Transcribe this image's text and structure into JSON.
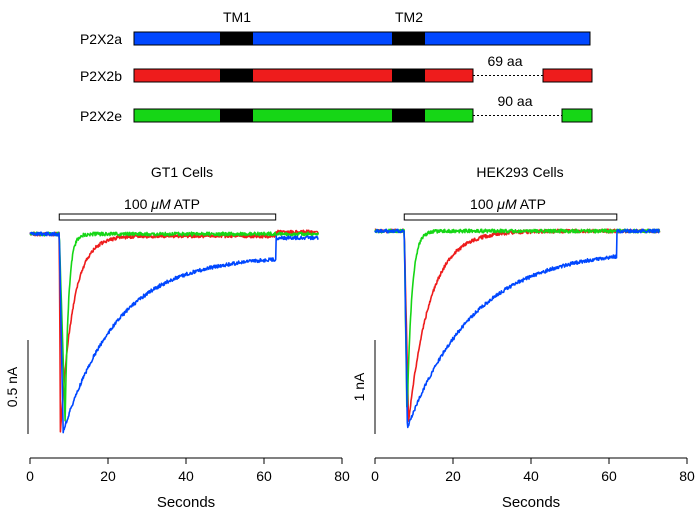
{
  "colors": {
    "p2x2a": "#0047ff",
    "p2x2b": "#ee1c1c",
    "p2x2e": "#16d616",
    "tm": "#000000",
    "axis": "#000000"
  },
  "diagram": {
    "tm1_label": "TM1",
    "tm2_label": "TM2",
    "isoforms": [
      {
        "name": "P2X2a",
        "color_key": "p2x2a",
        "deletion_label": ""
      },
      {
        "name": "P2X2b",
        "color_key": "p2x2b",
        "deletion_label": "69 aa"
      },
      {
        "name": "P2X2e",
        "color_key": "p2x2e",
        "deletion_label": "90 aa"
      }
    ]
  },
  "chart_data": [
    {
      "type": "line",
      "title": "GT1 Cells",
      "stimulus_label_prefix": "100 ",
      "stimulus_label_unit": "μM",
      "stimulus_label_suffix": " ATP",
      "stimulus_start": 7.5,
      "stimulus_end": 63,
      "xlabel": "Seconds",
      "xlim": [
        0,
        80
      ],
      "xticks": [
        0,
        20,
        40,
        60,
        80
      ],
      "x_tick_labels": [
        "0",
        "20",
        "40",
        "60",
        "80"
      ],
      "scale_bar_label": "0.5 nA",
      "scale_bar_value": 0.5,
      "x_end": 74,
      "series": [
        {
          "name": "P2X2a",
          "color_key": "p2x2a",
          "peak_time": 8.5,
          "peak": 1.0,
          "tau": 14,
          "plateau": 0.11,
          "end_level": 0.02,
          "recovery": 63
        },
        {
          "name": "P2X2b",
          "color_key": "p2x2b",
          "peak_time": 7.8,
          "peak": 1.0,
          "tau": 3.2,
          "plateau": 0.01,
          "end_level": -0.01,
          "recovery": 63
        },
        {
          "name": "P2X2e",
          "color_key": "p2x2e",
          "peak_time": 9.0,
          "peak": 0.94,
          "tau": 0.9,
          "plateau": 0.0,
          "end_level": 0.0,
          "recovery": 63
        }
      ]
    },
    {
      "type": "line",
      "title": "HEK293 Cells",
      "stimulus_label_prefix": "100 ",
      "stimulus_label_unit": "μM",
      "stimulus_label_suffix": " ATP",
      "stimulus_start": 7.5,
      "stimulus_end": 62,
      "xlabel": "Seconds",
      "xlim": [
        0,
        80
      ],
      "xticks": [
        0,
        20,
        40,
        60,
        80
      ],
      "x_tick_labels": [
        "0",
        "20",
        "40",
        "60",
        "80"
      ],
      "scale_bar_label": "1 nA",
      "scale_bar_value": 1,
      "x_end": 73,
      "series": [
        {
          "name": "P2X2a",
          "color_key": "p2x2a",
          "peak_time": 8.3,
          "peak": 1.0,
          "tau": 17,
          "plateau": 0.09,
          "end_level": 0.0,
          "recovery": 62
        },
        {
          "name": "P2X2b",
          "color_key": "p2x2b",
          "peak_time": 8.6,
          "peak": 0.97,
          "tau": 5.5,
          "plateau": 0.0,
          "end_level": 0.0,
          "recovery": 62
        },
        {
          "name": "P2X2e",
          "color_key": "p2x2e",
          "peak_time": 8.2,
          "peak": 0.95,
          "tau": 1.2,
          "plateau": 0.0,
          "end_level": 0.0,
          "recovery": 62
        }
      ]
    }
  ]
}
